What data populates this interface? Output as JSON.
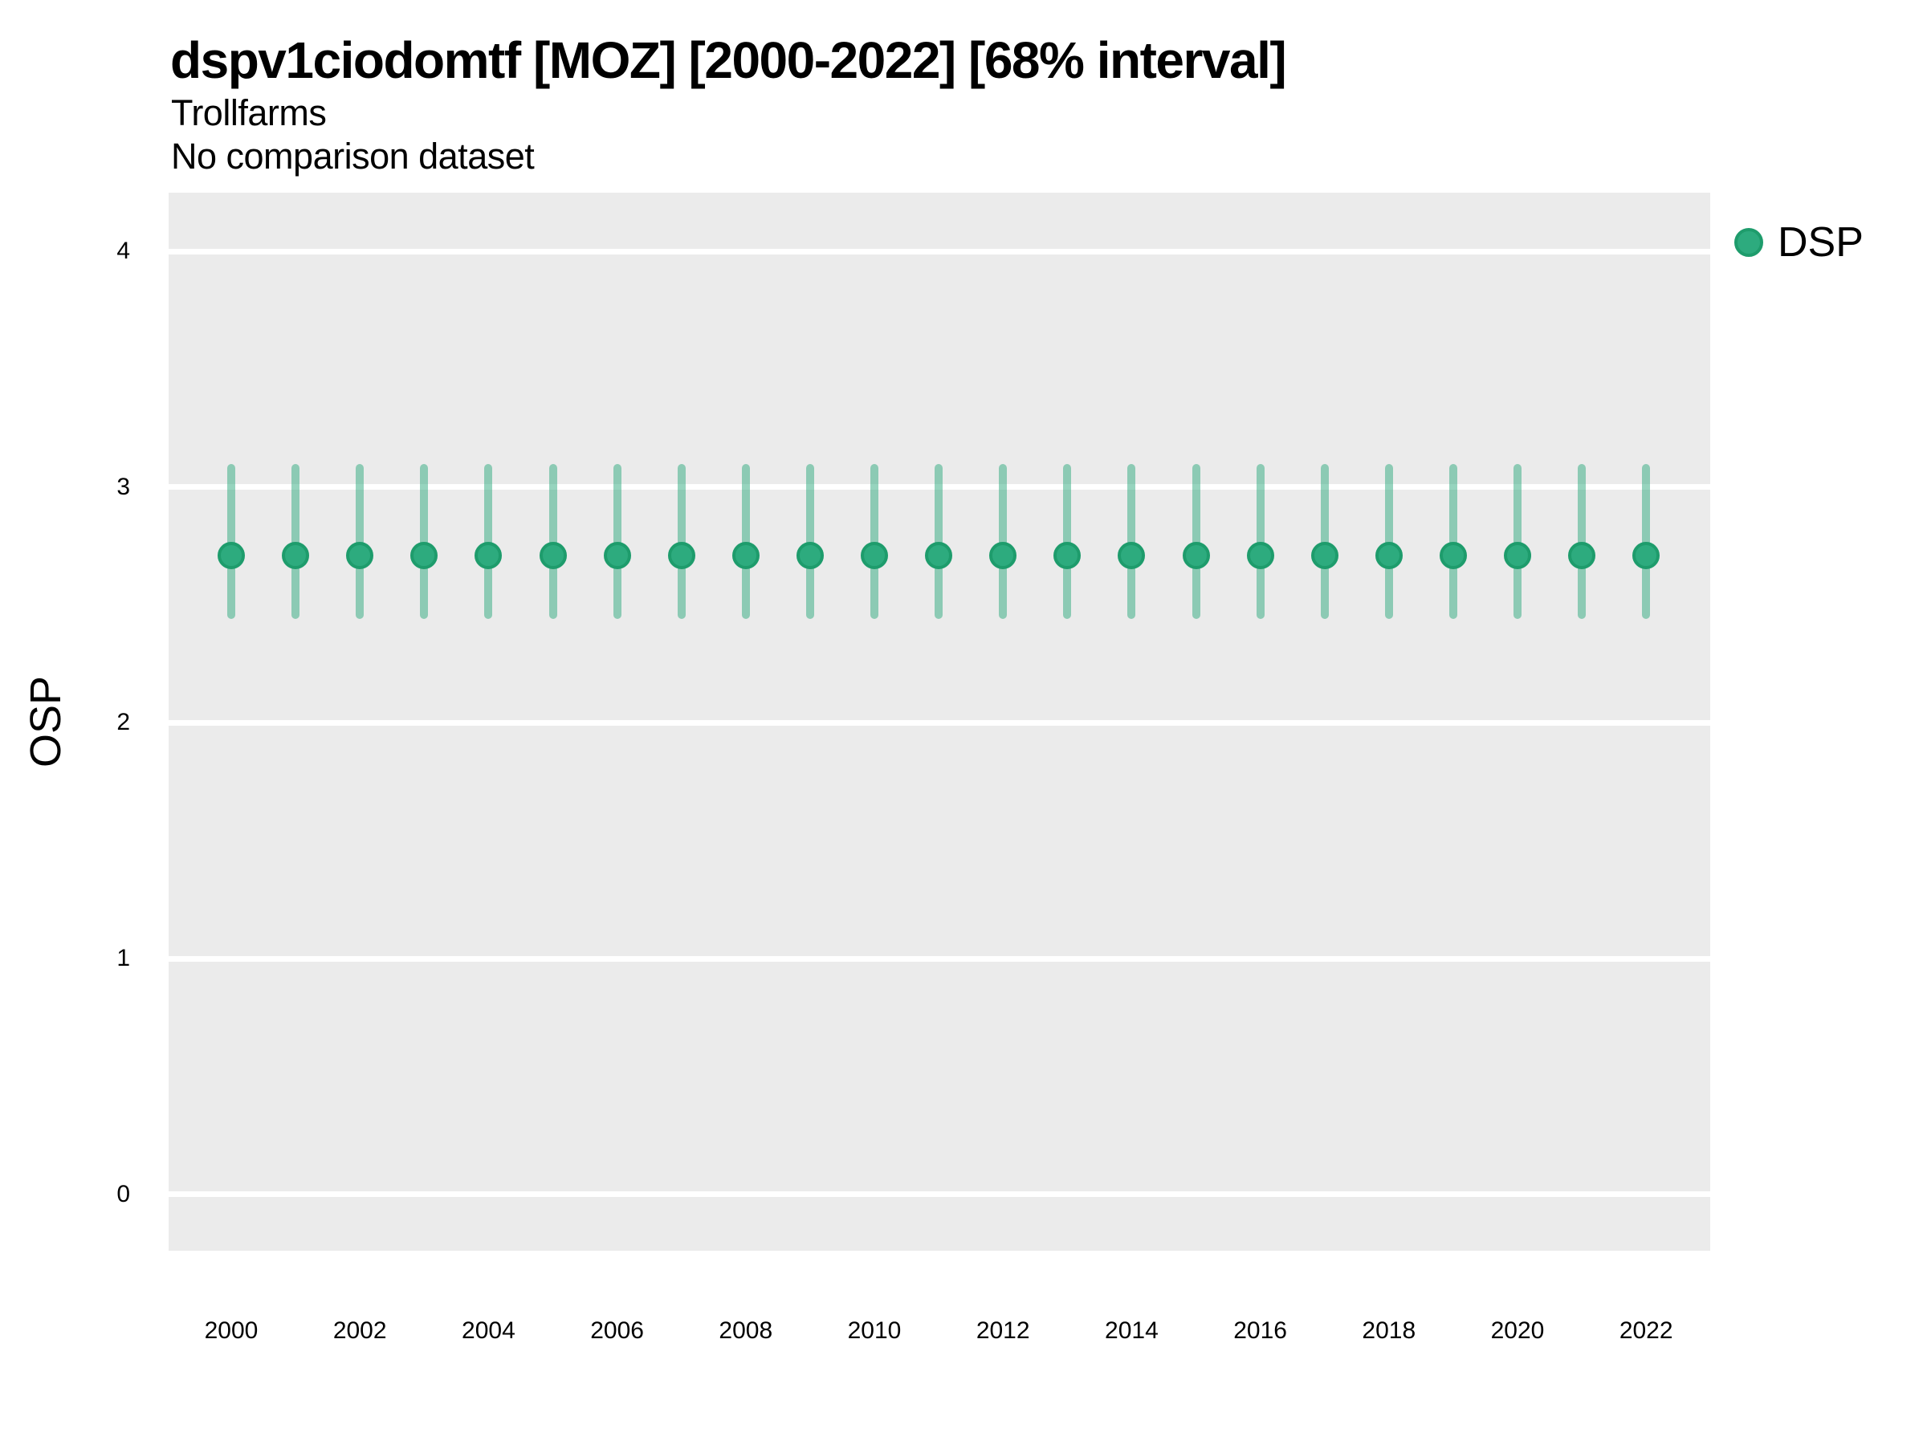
{
  "header": {
    "title": "dspv1ciodomtf [MOZ] [2000-2022] [68% interval]",
    "subtitle_lines": [
      "Trollfarms",
      "No comparison dataset"
    ]
  },
  "y_axis": {
    "label": "OSP"
  },
  "legend": {
    "items": [
      {
        "label": "DSP"
      }
    ]
  },
  "colors": {
    "panel_bg": "#ebebeb",
    "gridline": "#ffffff",
    "marker_fill": "#2dab7e",
    "marker_ring": "#1e9c6c",
    "error_bar": "rgba(45, 170, 125, 0.5)",
    "text": "#000000"
  },
  "chart_data": {
    "type": "scatter",
    "title": "dspv1ciodomtf [MOZ] [2000-2022] [68% interval]",
    "subtitle": "Trollfarms",
    "note": "No comparison dataset",
    "xlabel": "",
    "ylabel": "OSP",
    "interval": "68%",
    "ylim": [
      -0.24,
      4.25
    ],
    "yticks": [
      0,
      1,
      2,
      3,
      4
    ],
    "xticks": [
      2000,
      2002,
      2004,
      2006,
      2008,
      2010,
      2012,
      2014,
      2016,
      2018,
      2020,
      2022
    ],
    "grid": "horizontal white major gridlines on gray panel",
    "legend_position": "right-top",
    "series": [
      {
        "name": "DSP",
        "x": [
          2000,
          2001,
          2002,
          2003,
          2004,
          2005,
          2006,
          2007,
          2008,
          2009,
          2010,
          2011,
          2012,
          2013,
          2014,
          2015,
          2016,
          2017,
          2018,
          2019,
          2020,
          2021,
          2022
        ],
        "y": [
          2.71,
          2.71,
          2.71,
          2.71,
          2.71,
          2.71,
          2.71,
          2.71,
          2.71,
          2.71,
          2.71,
          2.71,
          2.71,
          2.71,
          2.71,
          2.71,
          2.71,
          2.71,
          2.71,
          2.71,
          2.71,
          2.71,
          2.71
        ],
        "y_lo": [
          2.44,
          2.44,
          2.44,
          2.44,
          2.44,
          2.44,
          2.44,
          2.44,
          2.44,
          2.44,
          2.44,
          2.44,
          2.44,
          2.44,
          2.44,
          2.44,
          2.44,
          2.44,
          2.44,
          2.44,
          2.44,
          2.44,
          2.44
        ],
        "y_hi": [
          3.1,
          3.1,
          3.1,
          3.1,
          3.1,
          3.1,
          3.1,
          3.1,
          3.1,
          3.1,
          3.1,
          3.1,
          3.1,
          3.1,
          3.1,
          3.1,
          3.1,
          3.1,
          3.1,
          3.1,
          3.1,
          3.1,
          3.1
        ]
      }
    ]
  }
}
